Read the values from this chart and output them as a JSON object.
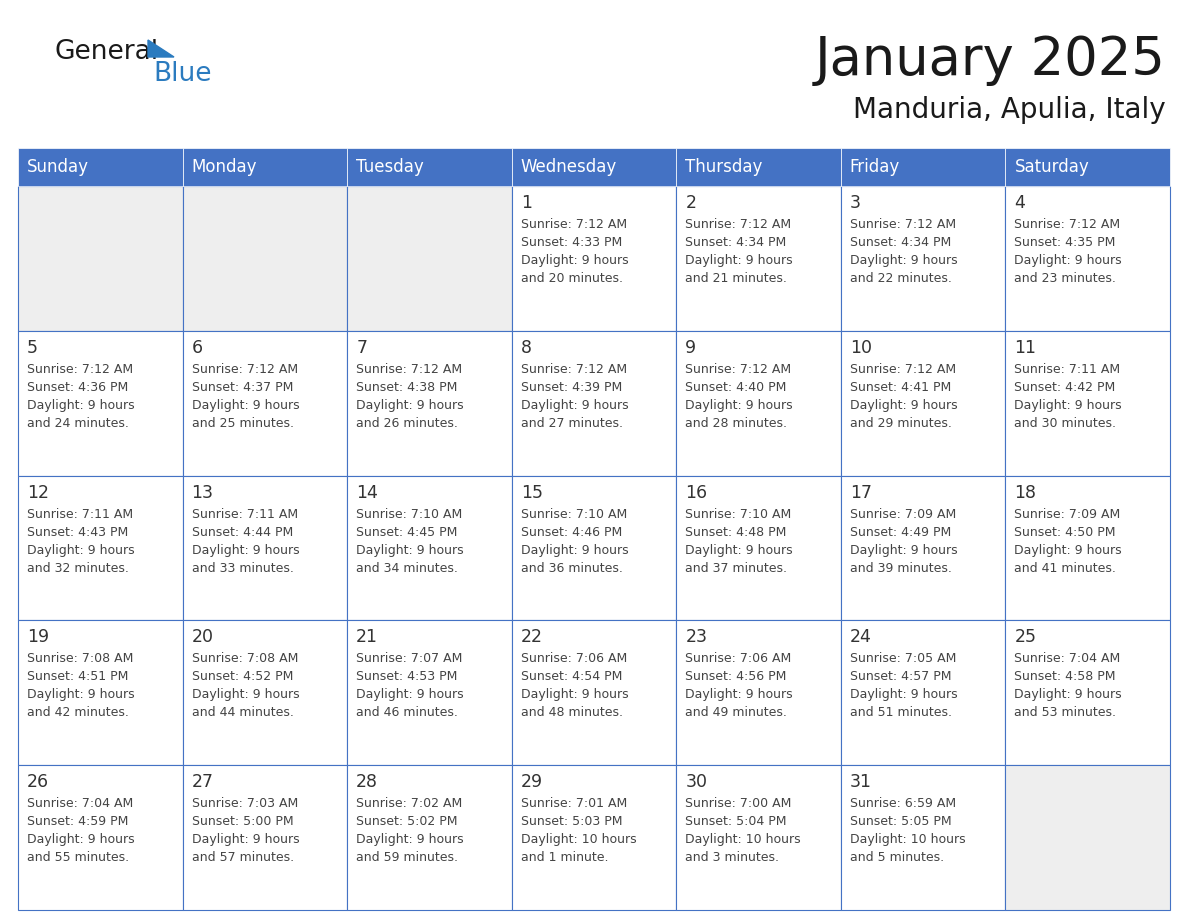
{
  "title": "January 2025",
  "subtitle": "Manduria, Apulia, Italy",
  "header_bg_color": "#4472C4",
  "header_text_color": "#FFFFFF",
  "weekdays": [
    "Sunday",
    "Monday",
    "Tuesday",
    "Wednesday",
    "Thursday",
    "Friday",
    "Saturday"
  ],
  "days": [
    {
      "row": 0,
      "col": 0,
      "num": "",
      "sunrise": "",
      "sunset": "",
      "daylight1": "",
      "daylight2": ""
    },
    {
      "row": 0,
      "col": 1,
      "num": "",
      "sunrise": "",
      "sunset": "",
      "daylight1": "",
      "daylight2": ""
    },
    {
      "row": 0,
      "col": 2,
      "num": "",
      "sunrise": "",
      "sunset": "",
      "daylight1": "",
      "daylight2": ""
    },
    {
      "row": 0,
      "col": 3,
      "num": "1",
      "sunrise": "Sunrise: 7:12 AM",
      "sunset": "Sunset: 4:33 PM",
      "daylight1": "Daylight: 9 hours",
      "daylight2": "and 20 minutes."
    },
    {
      "row": 0,
      "col": 4,
      "num": "2",
      "sunrise": "Sunrise: 7:12 AM",
      "sunset": "Sunset: 4:34 PM",
      "daylight1": "Daylight: 9 hours",
      "daylight2": "and 21 minutes."
    },
    {
      "row": 0,
      "col": 5,
      "num": "3",
      "sunrise": "Sunrise: 7:12 AM",
      "sunset": "Sunset: 4:34 PM",
      "daylight1": "Daylight: 9 hours",
      "daylight2": "and 22 minutes."
    },
    {
      "row": 0,
      "col": 6,
      "num": "4",
      "sunrise": "Sunrise: 7:12 AM",
      "sunset": "Sunset: 4:35 PM",
      "daylight1": "Daylight: 9 hours",
      "daylight2": "and 23 minutes."
    },
    {
      "row": 1,
      "col": 0,
      "num": "5",
      "sunrise": "Sunrise: 7:12 AM",
      "sunset": "Sunset: 4:36 PM",
      "daylight1": "Daylight: 9 hours",
      "daylight2": "and 24 minutes."
    },
    {
      "row": 1,
      "col": 1,
      "num": "6",
      "sunrise": "Sunrise: 7:12 AM",
      "sunset": "Sunset: 4:37 PM",
      "daylight1": "Daylight: 9 hours",
      "daylight2": "and 25 minutes."
    },
    {
      "row": 1,
      "col": 2,
      "num": "7",
      "sunrise": "Sunrise: 7:12 AM",
      "sunset": "Sunset: 4:38 PM",
      "daylight1": "Daylight: 9 hours",
      "daylight2": "and 26 minutes."
    },
    {
      "row": 1,
      "col": 3,
      "num": "8",
      "sunrise": "Sunrise: 7:12 AM",
      "sunset": "Sunset: 4:39 PM",
      "daylight1": "Daylight: 9 hours",
      "daylight2": "and 27 minutes."
    },
    {
      "row": 1,
      "col": 4,
      "num": "9",
      "sunrise": "Sunrise: 7:12 AM",
      "sunset": "Sunset: 4:40 PM",
      "daylight1": "Daylight: 9 hours",
      "daylight2": "and 28 minutes."
    },
    {
      "row": 1,
      "col": 5,
      "num": "10",
      "sunrise": "Sunrise: 7:12 AM",
      "sunset": "Sunset: 4:41 PM",
      "daylight1": "Daylight: 9 hours",
      "daylight2": "and 29 minutes."
    },
    {
      "row": 1,
      "col": 6,
      "num": "11",
      "sunrise": "Sunrise: 7:11 AM",
      "sunset": "Sunset: 4:42 PM",
      "daylight1": "Daylight: 9 hours",
      "daylight2": "and 30 minutes."
    },
    {
      "row": 2,
      "col": 0,
      "num": "12",
      "sunrise": "Sunrise: 7:11 AM",
      "sunset": "Sunset: 4:43 PM",
      "daylight1": "Daylight: 9 hours",
      "daylight2": "and 32 minutes."
    },
    {
      "row": 2,
      "col": 1,
      "num": "13",
      "sunrise": "Sunrise: 7:11 AM",
      "sunset": "Sunset: 4:44 PM",
      "daylight1": "Daylight: 9 hours",
      "daylight2": "and 33 minutes."
    },
    {
      "row": 2,
      "col": 2,
      "num": "14",
      "sunrise": "Sunrise: 7:10 AM",
      "sunset": "Sunset: 4:45 PM",
      "daylight1": "Daylight: 9 hours",
      "daylight2": "and 34 minutes."
    },
    {
      "row": 2,
      "col": 3,
      "num": "15",
      "sunrise": "Sunrise: 7:10 AM",
      "sunset": "Sunset: 4:46 PM",
      "daylight1": "Daylight: 9 hours",
      "daylight2": "and 36 minutes."
    },
    {
      "row": 2,
      "col": 4,
      "num": "16",
      "sunrise": "Sunrise: 7:10 AM",
      "sunset": "Sunset: 4:48 PM",
      "daylight1": "Daylight: 9 hours",
      "daylight2": "and 37 minutes."
    },
    {
      "row": 2,
      "col": 5,
      "num": "17",
      "sunrise": "Sunrise: 7:09 AM",
      "sunset": "Sunset: 4:49 PM",
      "daylight1": "Daylight: 9 hours",
      "daylight2": "and 39 minutes."
    },
    {
      "row": 2,
      "col": 6,
      "num": "18",
      "sunrise": "Sunrise: 7:09 AM",
      "sunset": "Sunset: 4:50 PM",
      "daylight1": "Daylight: 9 hours",
      "daylight2": "and 41 minutes."
    },
    {
      "row": 3,
      "col": 0,
      "num": "19",
      "sunrise": "Sunrise: 7:08 AM",
      "sunset": "Sunset: 4:51 PM",
      "daylight1": "Daylight: 9 hours",
      "daylight2": "and 42 minutes."
    },
    {
      "row": 3,
      "col": 1,
      "num": "20",
      "sunrise": "Sunrise: 7:08 AM",
      "sunset": "Sunset: 4:52 PM",
      "daylight1": "Daylight: 9 hours",
      "daylight2": "and 44 minutes."
    },
    {
      "row": 3,
      "col": 2,
      "num": "21",
      "sunrise": "Sunrise: 7:07 AM",
      "sunset": "Sunset: 4:53 PM",
      "daylight1": "Daylight: 9 hours",
      "daylight2": "and 46 minutes."
    },
    {
      "row": 3,
      "col": 3,
      "num": "22",
      "sunrise": "Sunrise: 7:06 AM",
      "sunset": "Sunset: 4:54 PM",
      "daylight1": "Daylight: 9 hours",
      "daylight2": "and 48 minutes."
    },
    {
      "row": 3,
      "col": 4,
      "num": "23",
      "sunrise": "Sunrise: 7:06 AM",
      "sunset": "Sunset: 4:56 PM",
      "daylight1": "Daylight: 9 hours",
      "daylight2": "and 49 minutes."
    },
    {
      "row": 3,
      "col": 5,
      "num": "24",
      "sunrise": "Sunrise: 7:05 AM",
      "sunset": "Sunset: 4:57 PM",
      "daylight1": "Daylight: 9 hours",
      "daylight2": "and 51 minutes."
    },
    {
      "row": 3,
      "col": 6,
      "num": "25",
      "sunrise": "Sunrise: 7:04 AM",
      "sunset": "Sunset: 4:58 PM",
      "daylight1": "Daylight: 9 hours",
      "daylight2": "and 53 minutes."
    },
    {
      "row": 4,
      "col": 0,
      "num": "26",
      "sunrise": "Sunrise: 7:04 AM",
      "sunset": "Sunset: 4:59 PM",
      "daylight1": "Daylight: 9 hours",
      "daylight2": "and 55 minutes."
    },
    {
      "row": 4,
      "col": 1,
      "num": "27",
      "sunrise": "Sunrise: 7:03 AM",
      "sunset": "Sunset: 5:00 PM",
      "daylight1": "Daylight: 9 hours",
      "daylight2": "and 57 minutes."
    },
    {
      "row": 4,
      "col": 2,
      "num": "28",
      "sunrise": "Sunrise: 7:02 AM",
      "sunset": "Sunset: 5:02 PM",
      "daylight1": "Daylight: 9 hours",
      "daylight2": "and 59 minutes."
    },
    {
      "row": 4,
      "col": 3,
      "num": "29",
      "sunrise": "Sunrise: 7:01 AM",
      "sunset": "Sunset: 5:03 PM",
      "daylight1": "Daylight: 10 hours",
      "daylight2": "and 1 minute."
    },
    {
      "row": 4,
      "col": 4,
      "num": "30",
      "sunrise": "Sunrise: 7:00 AM",
      "sunset": "Sunset: 5:04 PM",
      "daylight1": "Daylight: 10 hours",
      "daylight2": "and 3 minutes."
    },
    {
      "row": 4,
      "col": 5,
      "num": "31",
      "sunrise": "Sunrise: 6:59 AM",
      "sunset": "Sunset: 5:05 PM",
      "daylight1": "Daylight: 10 hours",
      "daylight2": "and 5 minutes."
    },
    {
      "row": 4,
      "col": 6,
      "num": "",
      "sunrise": "",
      "sunset": "",
      "daylight1": "",
      "daylight2": ""
    }
  ],
  "num_rows": 5,
  "cell_border_color": "#4472C4",
  "cell_border_color_light": "#6699CC",
  "day_num_color": "#333333",
  "text_color": "#444444",
  "empty_cell_bg": "#EEEEEE",
  "normal_cell_bg": "#FFFFFF",
  "logo_general_color": "#1a1a1a",
  "logo_blue_color": "#2B7BBF",
  "logo_triangle_color": "#2B7BBF",
  "title_color": "#1a1a1a",
  "subtitle_color": "#1a1a1a"
}
